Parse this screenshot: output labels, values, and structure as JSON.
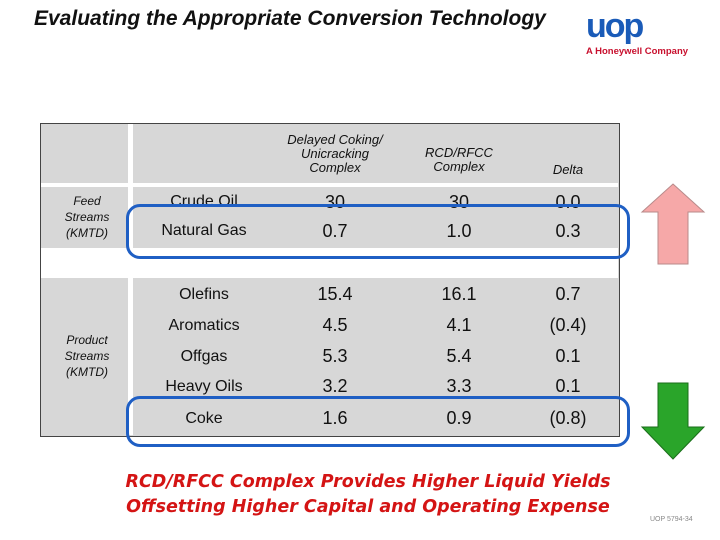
{
  "title": "Evaluating the Appropriate Conversion Technology",
  "logo": {
    "word": "uop",
    "tagline": "A Honeywell Company"
  },
  "table": {
    "headers": [
      "Delayed Coking/ Unicracking Complex",
      "RCD/RFCC Complex",
      "Delta"
    ],
    "feed_label": "Feed Streams (KMTD)",
    "product_label": "Product Streams (KMTD)",
    "feed_rows": [
      {
        "name": "Crude Oil",
        "c1": "30",
        "c2": "30",
        "delta": "0.0"
      },
      {
        "name": "Natural Gas",
        "c1": "0.7",
        "c2": "1.0",
        "delta": "0.3"
      }
    ],
    "product_rows": [
      {
        "name": "Olefins",
        "c1": "15.4",
        "c2": "16.1",
        "delta": "0.7"
      },
      {
        "name": "Aromatics",
        "c1": "4.5",
        "c2": "4.1",
        "delta": "(0.4)"
      },
      {
        "name": "Offgas",
        "c1": "5.3",
        "c2": "5.4",
        "delta": "0.1"
      },
      {
        "name": "Heavy Oils",
        "c1": "3.2",
        "c2": "3.3",
        "delta": "0.1"
      },
      {
        "name": "Coke",
        "c1": "1.6",
        "c2": "0.9",
        "delta": "(0.8)"
      }
    ]
  },
  "arrows": {
    "up_color": "#f6a8a8",
    "down_color": "#2aa52a",
    "frame_color": "#1f5fc4"
  },
  "caption_line1": "RCD/RFCC Complex Provides Higher Liquid Yields",
  "caption_line2": "Offsetting Higher Capital and Operating Expense",
  "footer": "UOP 5794-34"
}
